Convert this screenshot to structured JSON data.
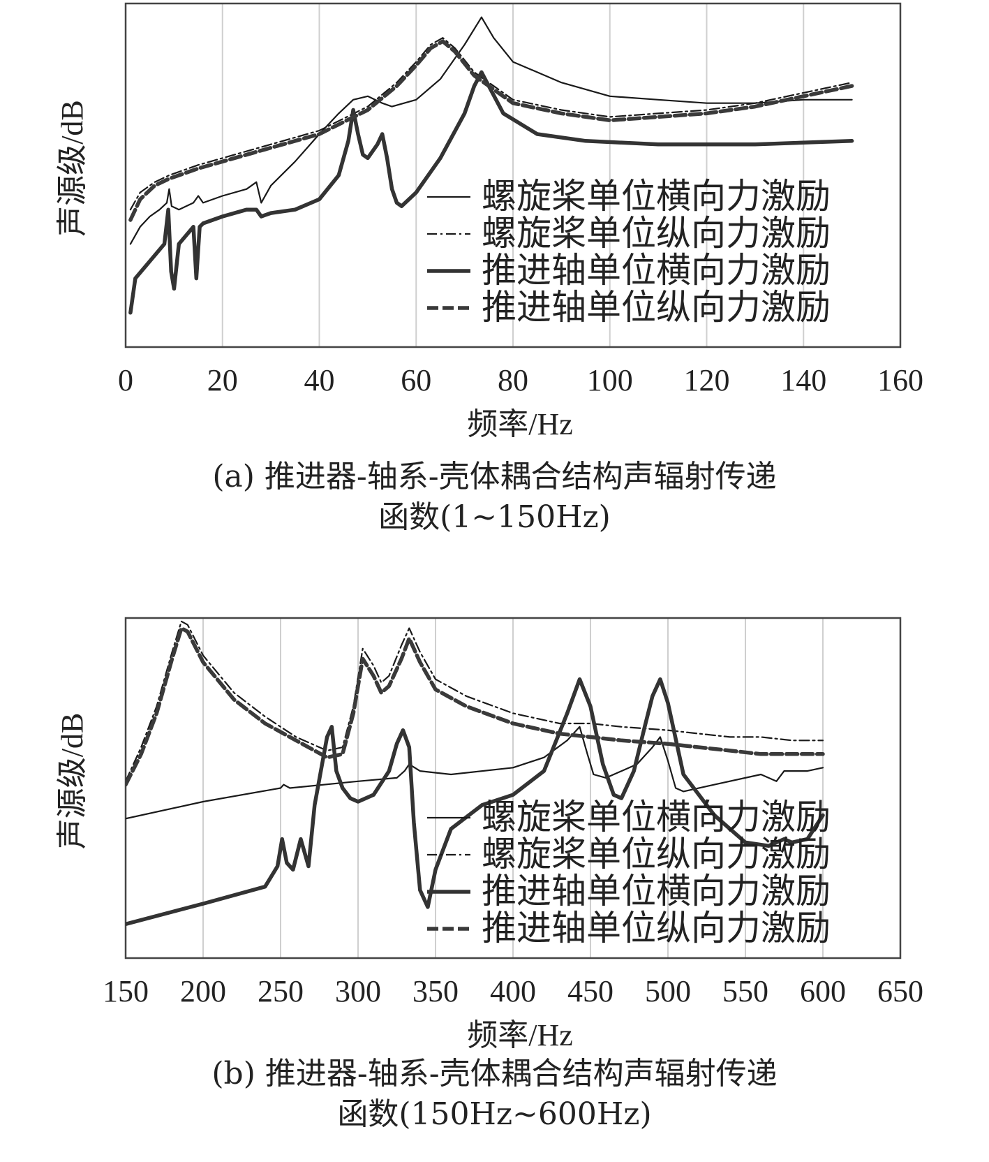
{
  "chart_data": [
    {
      "id": "a",
      "type": "line",
      "caption_line1": "(a) 推进器-轴系-壳体耦合结构声辐射传递",
      "caption_line2": "函数(1~150Hz)",
      "xlabel": "频率/Hz",
      "ylabel": "声源级/dB",
      "xlim": [
        0,
        160
      ],
      "xticks": [
        0,
        20,
        40,
        60,
        80,
        100,
        120,
        140,
        160
      ],
      "ylim": [
        0,
        100
      ],
      "grid": "vertical",
      "legend_position": "lower-right",
      "series": [
        {
          "name": "螺旋桨单位横向力激励",
          "style": "thin-solid",
          "x": [
            1,
            3,
            5,
            7,
            8.5,
            9,
            9.5,
            11,
            14,
            15,
            16,
            20,
            25,
            27,
            28,
            30,
            35,
            40,
            44,
            47,
            50,
            53,
            55,
            60,
            65,
            70,
            73.5,
            76,
            80,
            90,
            100,
            110,
            120,
            130,
            140,
            150
          ],
          "y": [
            30,
            35,
            38,
            40,
            42,
            46,
            41,
            40,
            42,
            44,
            42,
            44,
            46,
            48,
            42,
            47,
            54,
            62,
            68,
            72,
            73,
            71,
            70,
            72,
            78,
            88,
            96,
            90,
            83,
            77,
            73,
            72,
            71,
            71,
            72,
            72
          ]
        },
        {
          "name": "螺旋桨单位纵向力激励",
          "style": "thin-dashdot",
          "x": [
            1,
            3,
            6,
            9,
            15,
            20,
            30,
            40,
            50,
            56,
            60,
            63,
            65.5,
            68,
            72,
            80,
            90,
            100,
            110,
            120,
            130,
            140,
            150
          ],
          "y": [
            40,
            45,
            48,
            50,
            53,
            55,
            59,
            63,
            70,
            77,
            83,
            88,
            90,
            87,
            80,
            72,
            69,
            67,
            68,
            69,
            71,
            74,
            77
          ]
        },
        {
          "name": "推进轴单位横向力激励",
          "style": "thick-solid",
          "x": [
            1,
            2,
            5,
            8,
            8.8,
            9.4,
            10,
            11,
            14,
            14.6,
            15.3,
            16,
            20,
            25,
            27,
            28,
            30,
            35,
            40,
            44,
            46,
            47,
            48,
            49,
            50,
            52,
            53,
            54,
            55,
            56,
            57,
            60,
            65,
            70,
            72,
            73.5,
            75,
            78,
            85,
            95,
            110,
            130,
            150
          ],
          "y": [
            10,
            20,
            25,
            30,
            40,
            22,
            17,
            30,
            35,
            20,
            35,
            36,
            38,
            40,
            40,
            38,
            39,
            40,
            43,
            50,
            60,
            69,
            62,
            56,
            55,
            59,
            62,
            55,
            46,
            42,
            41,
            45,
            55,
            68,
            76,
            80,
            76,
            68,
            62,
            60,
            59,
            59,
            60
          ]
        },
        {
          "name": "推进轴单位纵向力激励",
          "style": "thick-dashed",
          "x": [
            1,
            3,
            6,
            9,
            15,
            20,
            30,
            40,
            50,
            56,
            60,
            63,
            65.5,
            68,
            72,
            80,
            90,
            100,
            110,
            120,
            130,
            140,
            150
          ],
          "y": [
            37,
            43,
            47,
            49,
            52,
            54,
            58,
            62,
            69,
            76,
            82,
            87,
            89,
            86,
            79,
            71,
            68,
            66,
            67,
            68,
            70,
            73,
            76
          ]
        }
      ],
      "legend": [
        "螺旋桨单位横向力激励",
        "螺旋桨单位纵向力激励",
        "推进轴单位横向力激励",
        "推进轴单位纵向力激励"
      ]
    },
    {
      "id": "b",
      "type": "line",
      "caption_line1": "(b) 推进器-轴系-壳体耦合结构声辐射传递",
      "caption_line2": "函数(150Hz~600Hz)",
      "xlabel": "频率/Hz",
      "ylabel": "声源级/dB",
      "xlim": [
        150,
        650
      ],
      "xticks": [
        150,
        200,
        250,
        300,
        350,
        400,
        450,
        500,
        550,
        600,
        650
      ],
      "ylim": [
        0,
        100
      ],
      "grid": "vertical",
      "legend_position": "lower-right",
      "series": [
        {
          "name": "螺旋桨单位横向力激励",
          "style": "thin-solid",
          "x": [
            150,
            200,
            250,
            252,
            256,
            300,
            325,
            330,
            333,
            340,
            360,
            400,
            420,
            435,
            443,
            448,
            452,
            460,
            480,
            490,
            495,
            500,
            505,
            510,
            530,
            560,
            570,
            575,
            590,
            600
          ],
          "y": [
            41,
            46,
            50,
            51,
            50,
            52,
            53,
            55,
            57,
            55,
            54,
            56,
            59,
            64,
            68,
            60,
            54,
            53,
            57,
            62,
            65,
            58,
            50,
            49,
            51,
            54,
            52,
            55,
            55,
            56
          ]
        },
        {
          "name": "螺旋桨单位纵向力激励",
          "style": "thin-dashdot",
          "x": [
            150,
            160,
            170,
            180,
            186,
            190,
            200,
            220,
            240,
            260,
            280,
            290,
            297,
            303,
            310,
            315,
            320,
            328,
            333,
            340,
            350,
            370,
            400,
            430,
            450,
            470,
            500,
            520,
            540,
            560,
            580,
            600
          ],
          "y": [
            52,
            62,
            74,
            90,
            99,
            98,
            89,
            78,
            71,
            65,
            61,
            62,
            74,
            91,
            86,
            81,
            83,
            92,
            97,
            90,
            82,
            77,
            72,
            69,
            69,
            68,
            67,
            66,
            65,
            65,
            64,
            64
          ]
        },
        {
          "name": "推进轴单位横向力激励",
          "style": "thick-solid",
          "x": [
            150,
            200,
            240,
            248,
            251,
            254,
            258,
            263,
            268,
            272,
            276,
            280,
            283,
            286,
            290,
            295,
            300,
            310,
            320,
            325,
            329,
            333,
            336,
            340,
            345,
            350,
            360,
            380,
            400,
            420,
            435,
            443,
            450,
            458,
            465,
            470,
            478,
            485,
            490,
            495,
            500,
            510,
            530,
            550,
            565,
            570,
            575,
            580,
            590,
            600
          ],
          "y": [
            10,
            16,
            21,
            27,
            35,
            28,
            26,
            35,
            27,
            45,
            55,
            65,
            68,
            55,
            50,
            47,
            46,
            48,
            55,
            63,
            67,
            62,
            40,
            20,
            15,
            26,
            38,
            45,
            48,
            55,
            72,
            82,
            74,
            57,
            48,
            47,
            55,
            68,
            77,
            82,
            75,
            54,
            42,
            34,
            33,
            34,
            35,
            34,
            35,
            42
          ]
        },
        {
          "name": "推进轴单位纵向力激励",
          "style": "thick-dashed",
          "x": [
            150,
            160,
            170,
            180,
            186,
            190,
            200,
            220,
            240,
            260,
            280,
            290,
            297,
            303,
            310,
            315,
            320,
            328,
            333,
            340,
            350,
            370,
            400,
            430,
            450,
            470,
            500,
            520,
            540,
            560,
            580,
            600
          ],
          "y": [
            51,
            60,
            72,
            88,
            97,
            96,
            87,
            76,
            69,
            64,
            59,
            60,
            72,
            88,
            83,
            78,
            80,
            88,
            94,
            87,
            79,
            74,
            69,
            66,
            65,
            64,
            63,
            62,
            61,
            60,
            60,
            60
          ]
        }
      ],
      "legend": [
        "螺旋桨单位横向力激励",
        "螺旋桨单位纵向力激励",
        "推进轴单位横向力激励",
        "推进轴单位纵向力激励"
      ]
    }
  ]
}
